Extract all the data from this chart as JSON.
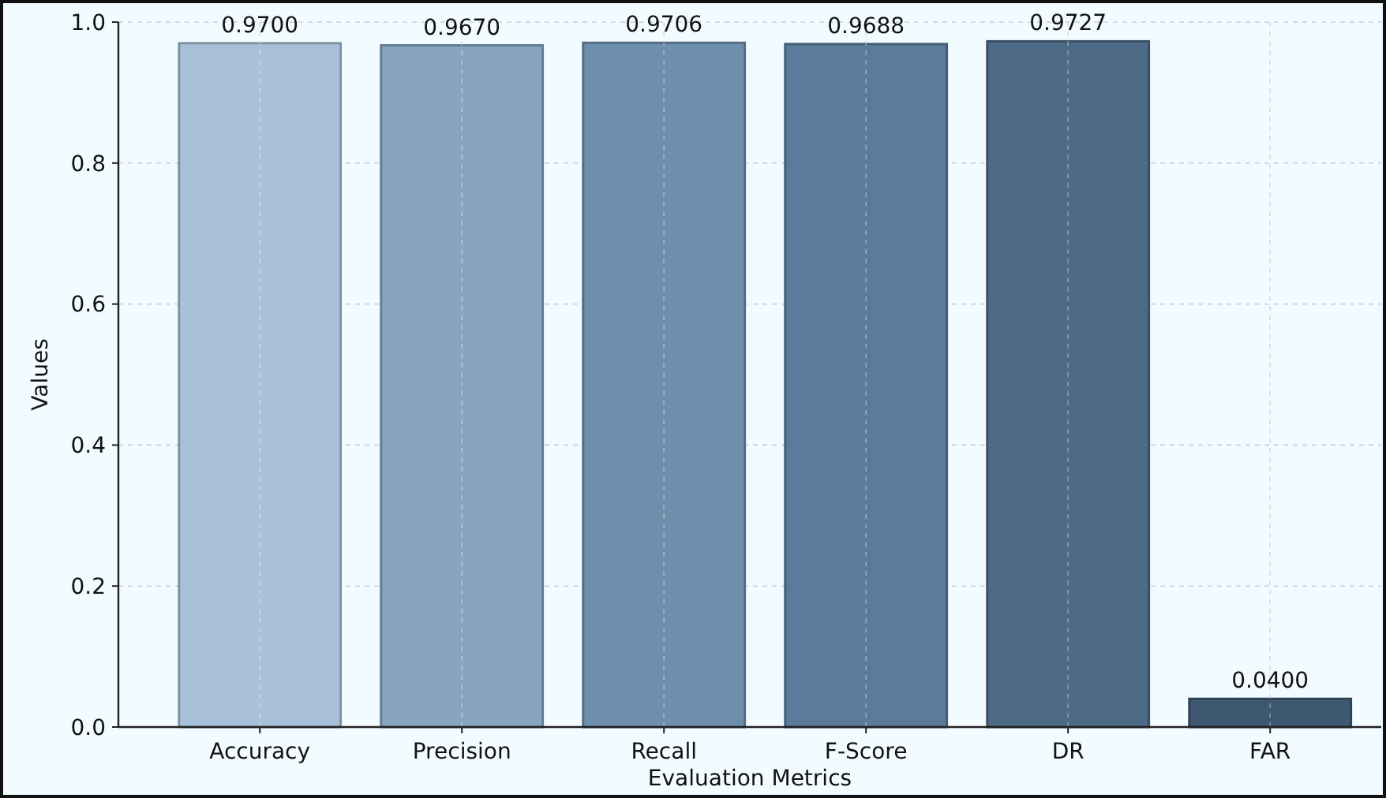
{
  "chart_data": {
    "type": "bar",
    "xlabel": "Evaluation Metrics",
    "ylabel": "Values",
    "categories": [
      "Accuracy",
      "Precision",
      "Recall",
      "F-Score",
      "DR",
      "FAR"
    ],
    "values": [
      0.97,
      0.967,
      0.9706,
      0.9688,
      0.9727,
      0.04
    ],
    "colors": [
      "#a8c1d9",
      "#87a5bf",
      "#6e8fab",
      "#5a7c9a",
      "#4d6b86",
      "#3e5871"
    ],
    "value_labels": [
      "0.9700",
      "0.9670",
      "0.9706",
      "0.9688",
      "0.9727",
      "0.0400"
    ],
    "ylim": [
      0,
      1
    ],
    "yticks": [
      {
        "value": 0,
        "label": "0.0"
      },
      {
        "value": 0.2,
        "label": "0.2"
      },
      {
        "value": 0.4,
        "label": "0.4"
      },
      {
        "value": 0.6,
        "label": "0.6"
      },
      {
        "value": 0.8,
        "label": "0.8"
      },
      {
        "value": 1,
        "label": "1.0"
      }
    ],
    "grid": true
  }
}
